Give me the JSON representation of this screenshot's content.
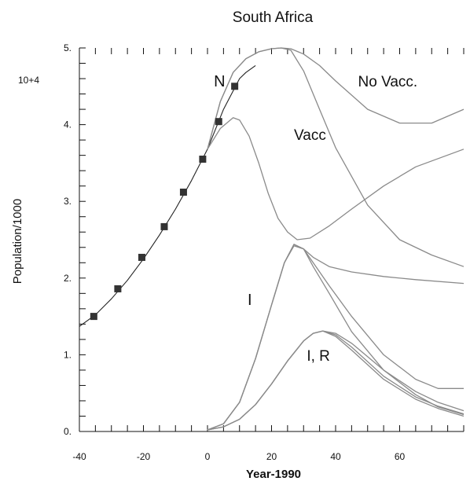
{
  "chart_data": {
    "type": "line",
    "title": "South Africa",
    "xlabel": "Year-1990",
    "ylabel": "Population/1000",
    "y_multiplier_label": "10+4",
    "xlim": [
      -40,
      80
    ],
    "ylim": [
      0,
      5
    ],
    "x_ticks": [
      -40,
      -20,
      0,
      20,
      40,
      60
    ],
    "x_tick_labels": [
      "-40",
      "-20",
      "0",
      "20",
      "40",
      "60"
    ],
    "y_ticks": [
      0,
      1,
      2,
      3,
      4,
      5
    ],
    "y_tick_labels": [
      "0.",
      "1.",
      "2.",
      "3.",
      "4.",
      "5."
    ],
    "grid": false,
    "annotations": [
      {
        "text": "N",
        "x": 2,
        "y": 4.5
      },
      {
        "text": "No Vacc.",
        "x": 47,
        "y": 4.5
      },
      {
        "text": "Vacc",
        "x": 27,
        "y": 3.8
      },
      {
        "text": "I",
        "x": 12.5,
        "y": 1.65
      },
      {
        "text": "I, R",
        "x": 31,
        "y": 0.92
      }
    ],
    "data_points": {
      "x": [
        -35.5,
        -28,
        -20.5,
        -13.5,
        -7.5,
        -1.5,
        3.5,
        8.5
      ],
      "y": [
        1.5,
        1.86,
        2.27,
        2.67,
        3.12,
        3.55,
        4.04,
        4.5
      ]
    },
    "series": [
      {
        "x": [
          -40,
          -35,
          -30,
          -25,
          -20,
          -15,
          -10,
          -5,
          0,
          5,
          10,
          12,
          15
        ],
        "y": [
          1.37,
          1.52,
          1.73,
          1.97,
          2.25,
          2.56,
          2.9,
          3.27,
          3.68,
          4.2,
          4.6,
          4.68,
          4.77
        ]
      },
      {
        "x": [
          0,
          4,
          8,
          12,
          16,
          20,
          23,
          26,
          30,
          35,
          40,
          50,
          60,
          70,
          80
        ],
        "y": [
          3.68,
          4.3,
          4.68,
          4.86,
          4.95,
          4.99,
          5.0,
          4.99,
          4.92,
          4.77,
          4.57,
          4.2,
          4.02,
          4.02,
          4.2
        ]
      },
      {
        "x": [
          0,
          4,
          8,
          12,
          16,
          20,
          23,
          26,
          30,
          35,
          40,
          50,
          60,
          70,
          80
        ],
        "y": [
          3.68,
          4.3,
          4.68,
          4.86,
          4.95,
          4.99,
          5.0,
          4.97,
          4.7,
          4.2,
          3.7,
          2.95,
          2.5,
          2.3,
          2.15
        ]
      },
      {
        "x": [
          0,
          4,
          8,
          10,
          13,
          16,
          19,
          22,
          25,
          28,
          32,
          38,
          45,
          55,
          65,
          80
        ],
        "y": [
          3.68,
          3.95,
          4.09,
          4.06,
          3.85,
          3.5,
          3.1,
          2.78,
          2.6,
          2.5,
          2.52,
          2.68,
          2.9,
          3.2,
          3.45,
          3.68
        ]
      },
      {
        "x": [
          0,
          5,
          10,
          15,
          20,
          24,
          27,
          30,
          33,
          38,
          45,
          55,
          65,
          80
        ],
        "y": [
          0.02,
          0.1,
          0.38,
          0.95,
          1.65,
          2.2,
          2.42,
          2.38,
          2.27,
          2.15,
          2.08,
          2.02,
          1.98,
          1.93
        ]
      },
      {
        "x": [
          0,
          5,
          10,
          15,
          20,
          24,
          27,
          30,
          33,
          38,
          45,
          55,
          65,
          72,
          80
        ],
        "y": [
          0.02,
          0.1,
          0.38,
          0.95,
          1.65,
          2.2,
          2.44,
          2.38,
          2.2,
          1.9,
          1.5,
          1.0,
          0.68,
          0.56,
          0.56
        ]
      },
      {
        "x": [
          0,
          5,
          10,
          15,
          20,
          24,
          27,
          30,
          33,
          38,
          45,
          55,
          65,
          72,
          80
        ],
        "y": [
          0.02,
          0.1,
          0.38,
          0.95,
          1.65,
          2.2,
          2.44,
          2.38,
          2.15,
          1.8,
          1.3,
          0.8,
          0.48,
          0.32,
          0.22
        ]
      },
      {
        "x": [
          0,
          5,
          10,
          15,
          20,
          25,
          30,
          33,
          36,
          40,
          45,
          55,
          65,
          72,
          80
        ],
        "y": [
          0.02,
          0.06,
          0.16,
          0.35,
          0.62,
          0.92,
          1.18,
          1.28,
          1.31,
          1.28,
          1.15,
          0.8,
          0.52,
          0.38,
          0.27
        ]
      },
      {
        "x": [
          0,
          5,
          10,
          15,
          20,
          25,
          30,
          33,
          36,
          40,
          45,
          55,
          65,
          72,
          80
        ],
        "y": [
          0.02,
          0.06,
          0.16,
          0.35,
          0.62,
          0.92,
          1.18,
          1.28,
          1.31,
          1.26,
          1.1,
          0.72,
          0.45,
          0.33,
          0.23
        ]
      },
      {
        "x": [
          0,
          5,
          10,
          15,
          20,
          25,
          30,
          33,
          36,
          40,
          45,
          55,
          65,
          72,
          80
        ],
        "y": [
          0.02,
          0.06,
          0.16,
          0.35,
          0.62,
          0.92,
          1.18,
          1.28,
          1.31,
          1.24,
          1.06,
          0.68,
          0.42,
          0.3,
          0.2
        ]
      }
    ]
  }
}
